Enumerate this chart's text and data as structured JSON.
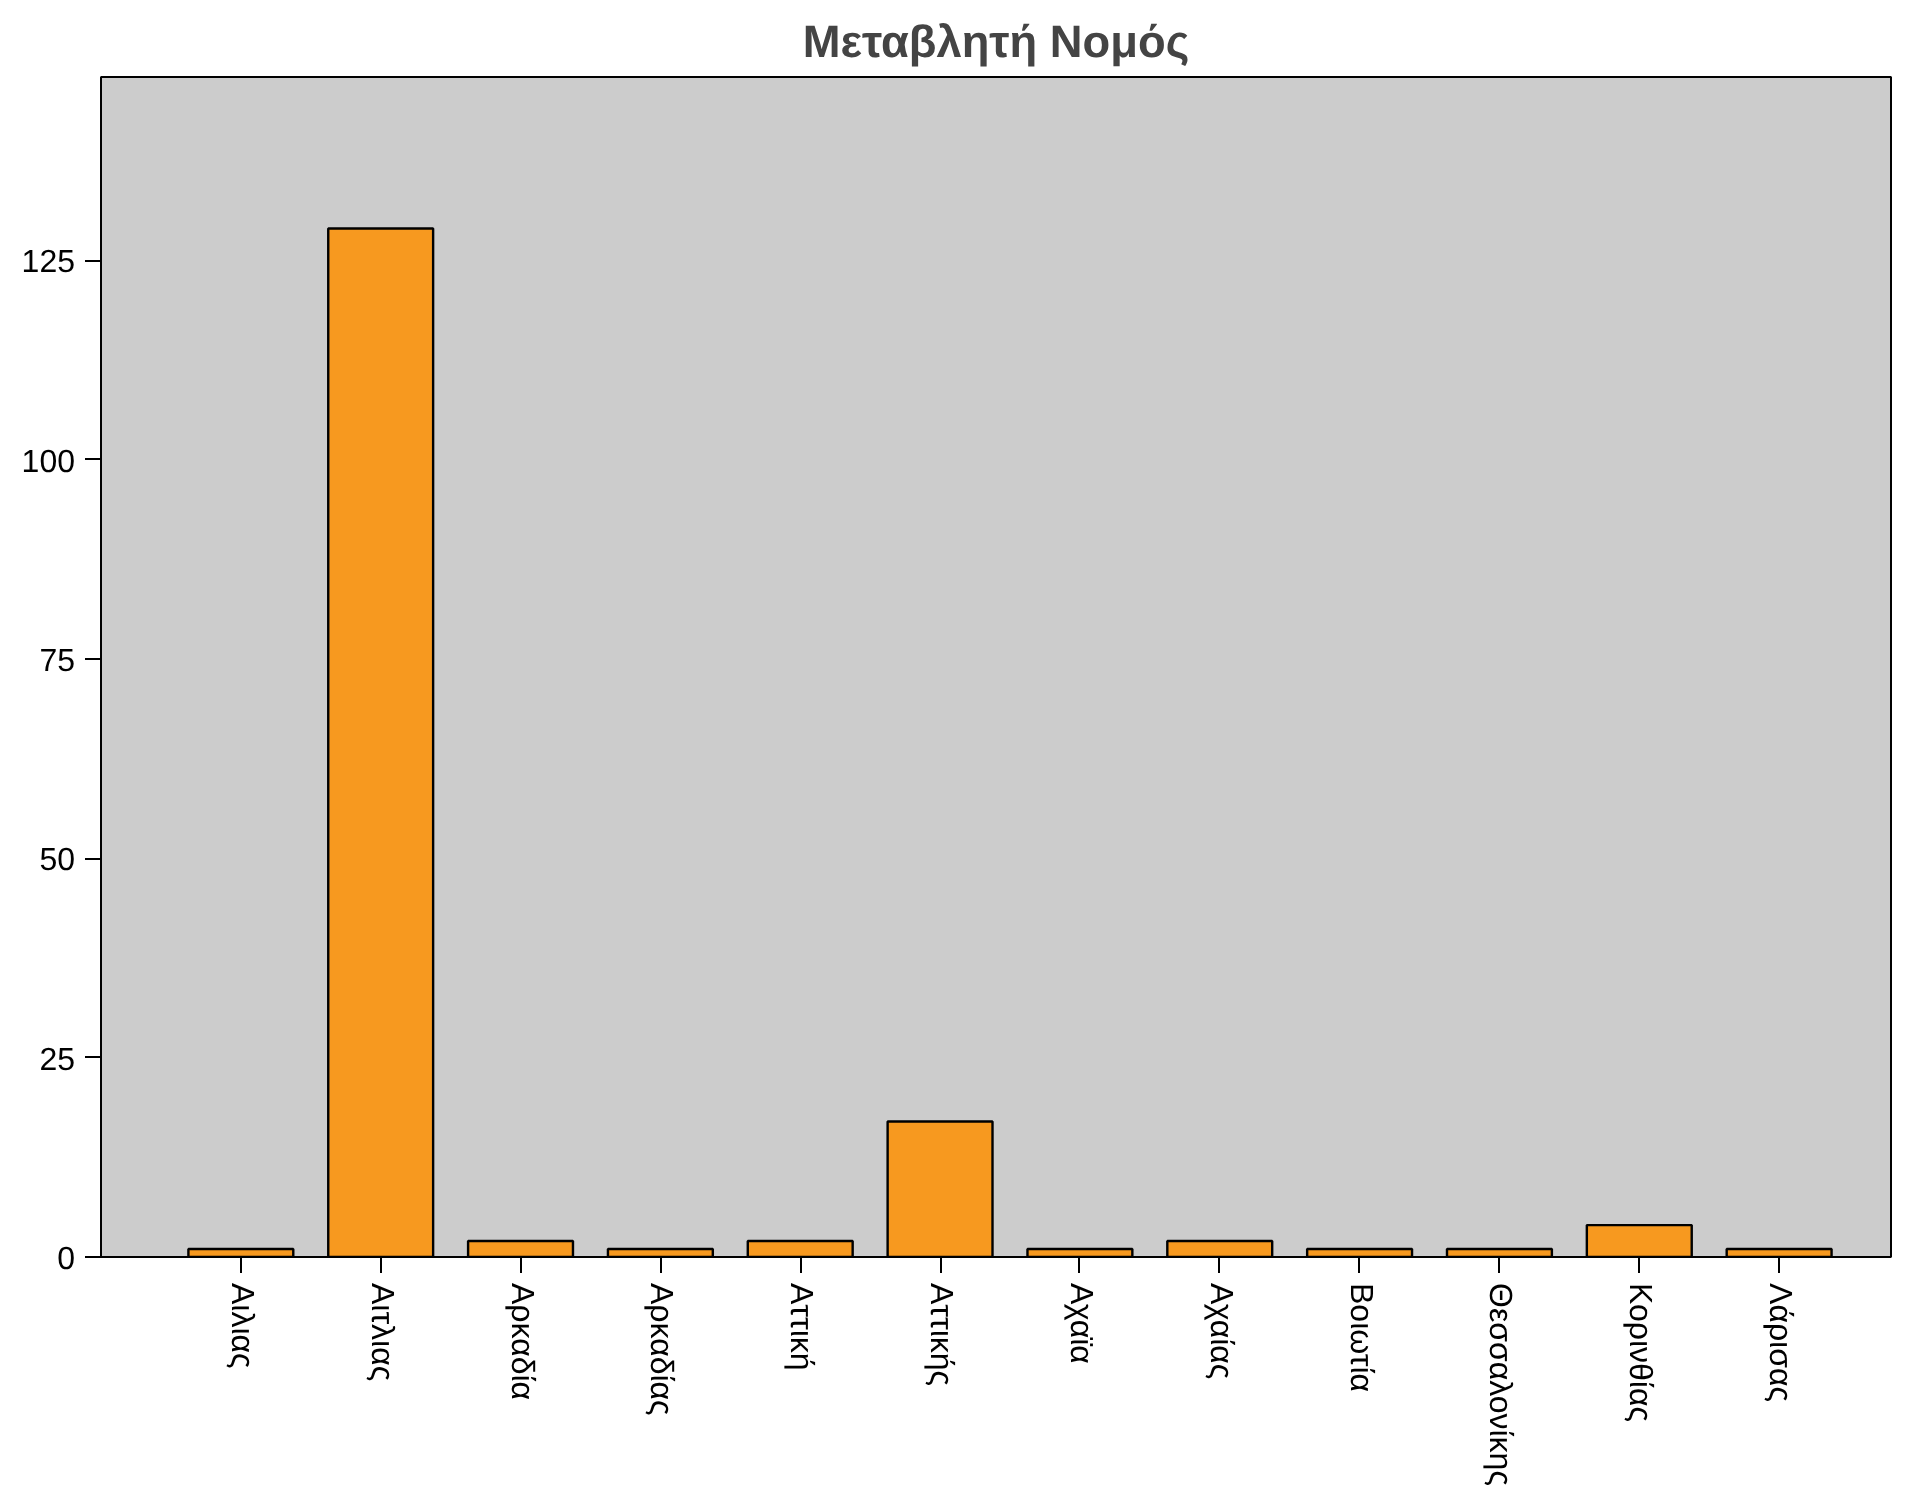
{
  "chart_data": {
    "type": "bar",
    "title": "Μεταβλητή Νομός",
    "categories": [
      "Αιλιας",
      "Αιτλιας",
      "Αρκαδία",
      "Αρκαδίας",
      "Αττική",
      "Αττικής",
      "Αχαϊα",
      "Αχαίας",
      "Βοιωτία",
      "Θεσσαλονίκης",
      "Κορινθίας",
      "Λάρισας"
    ],
    "values": [
      1,
      129,
      2,
      1,
      2,
      17,
      1,
      2,
      1,
      1,
      4,
      1
    ],
    "color": "#f7991f",
    "ylim": [
      0,
      148
    ],
    "yticks": [
      0,
      25,
      50,
      75,
      100,
      125
    ],
    "grid": false
  }
}
